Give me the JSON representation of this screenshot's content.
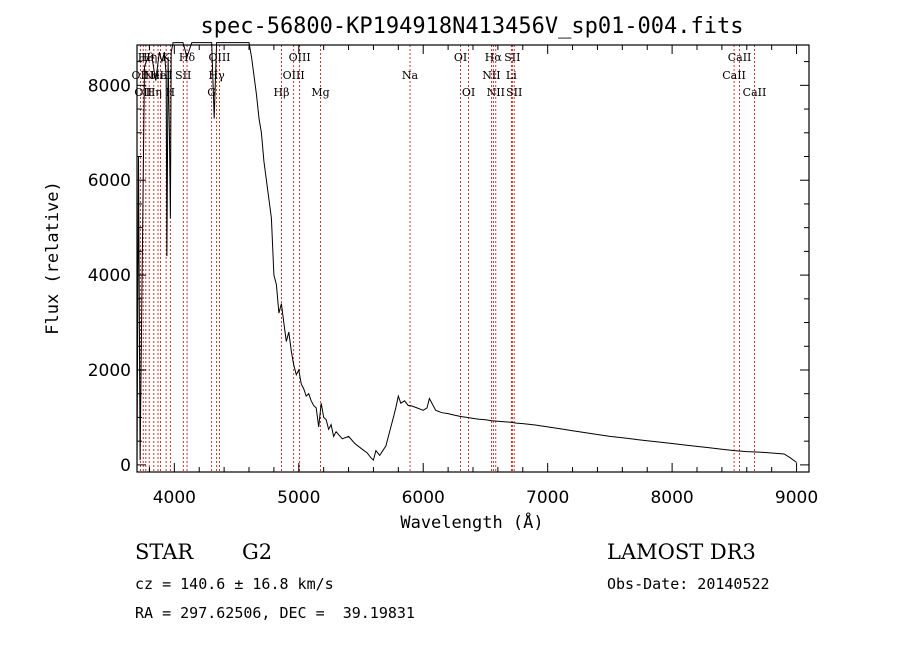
{
  "chart_data": {
    "type": "line",
    "title": "spec-56800-KP194918N413456V_sp01-004.fits",
    "xlabel": "Wavelength (Å)",
    "ylabel": "Flux (relative)",
    "xlim": [
      3700,
      9100
    ],
    "ylim": [
      -150,
      8850
    ],
    "xticks": [
      4000,
      5000,
      6000,
      7000,
      8000,
      9000
    ],
    "xtick_labels": [
      "4000",
      "5000",
      "6000",
      "7000",
      "8000",
      "9000"
    ],
    "yticks": [
      0,
      2000,
      4000,
      6000,
      8000
    ],
    "ytick_labels": [
      "0",
      "2000",
      "4000",
      "6000",
      "8000"
    ],
    "series": [
      {
        "name": "flux",
        "x": [
          3700,
          3712,
          3725,
          3740,
          3760,
          3790,
          3820,
          3850,
          3880,
          3900,
          3920,
          3935,
          3940,
          3950,
          3960,
          3968,
          3975,
          3990,
          4010,
          4040,
          4070,
          4102,
          4140,
          4200,
          4260,
          4300,
          4320,
          4340,
          4360,
          4400,
          4450,
          4500,
          4550,
          4600,
          4620,
          4640,
          4660,
          4680,
          4700,
          4720,
          4740,
          4760,
          4780,
          4800,
          4820,
          4840,
          4860,
          4880,
          4900,
          4920,
          4940,
          4960,
          4980,
          5000,
          5020,
          5040,
          5060,
          5080,
          5100,
          5120,
          5140,
          5160,
          5180,
          5200,
          5220,
          5240,
          5260,
          5280,
          5300,
          5350,
          5400,
          5450,
          5500,
          5550,
          5580,
          5600,
          5620,
          5650,
          5700,
          5730,
          5760,
          5780,
          5800,
          5820,
          5850,
          5880,
          5900,
          5950,
          6000,
          6030,
          6050,
          6100,
          6150,
          6200,
          6250,
          6300,
          6350,
          6400,
          6450,
          6500,
          6550,
          6600,
          6650,
          6700,
          6750,
          6800,
          6900,
          7000,
          7100,
          7200,
          7300,
          7400,
          7500,
          7600,
          7700,
          7800,
          7900,
          8000,
          8100,
          8200,
          8300,
          8400,
          8500,
          8600,
          8700,
          8800,
          8900,
          8950,
          9000
        ],
        "values": [
          0,
          6500,
          100,
          3800,
          8400,
          8600,
          8600,
          8100,
          8700,
          8500,
          8700,
          8200,
          4400,
          8600,
          7000,
          5200,
          8700,
          8900,
          8900,
          8900,
          8900,
          8600,
          8900,
          8900,
          8900,
          8900,
          7300,
          8900,
          8900,
          8900,
          8900,
          8900,
          8900,
          8900,
          8600,
          8200,
          7800,
          7300,
          7000,
          6400,
          6000,
          5600,
          5200,
          4000,
          3800,
          3200,
          3400,
          3000,
          2600,
          2800,
          2400,
          2100,
          1900,
          2000,
          1700,
          1600,
          1450,
          1500,
          1350,
          1250,
          1200,
          800,
          1300,
          1000,
          950,
          750,
          850,
          600,
          700,
          550,
          600,
          450,
          350,
          250,
          150,
          100,
          300,
          200,
          400,
          700,
          1000,
          1200,
          1450,
          1300,
          1350,
          1250,
          1250,
          1200,
          1150,
          1200,
          1400,
          1150,
          1100,
          1080,
          1050,
          1020,
          1000,
          980,
          960,
          950,
          930,
          920,
          910,
          900,
          880,
          870,
          840,
          800,
          760,
          720,
          680,
          640,
          600,
          570,
          540,
          510,
          480,
          450,
          420,
          390,
          360,
          330,
          300,
          280,
          270,
          250,
          230,
          150,
          50
        ]
      }
    ],
    "spectral_lines": [
      {
        "wl": 3727,
        "label": "OII",
        "row": 1
      },
      {
        "wl": 3750,
        "label": "OII",
        "row": 2
      },
      {
        "wl": 3771,
        "label": "Hθ",
        "row": 0
      },
      {
        "wl": 3798,
        "label": "Hη",
        "row": 0
      },
      {
        "wl": 3835,
        "label": "Hη",
        "row": 2
      },
      {
        "wl": 3869,
        "label": "NeIII",
        "row": 1
      },
      {
        "wl": 3889,
        "label": "HeI",
        "row": 1
      },
      {
        "wl": 3934,
        "label": "K",
        "row": 0
      },
      {
        "wl": 3968,
        "label": "H",
        "row": 2
      },
      {
        "wl": 4072,
        "label": "SII",
        "row": 1
      },
      {
        "wl": 4102,
        "label": "Hδ",
        "row": 0
      },
      {
        "wl": 4300,
        "label": "G",
        "row": 2
      },
      {
        "wl": 4340,
        "label": "Hγ",
        "row": 1
      },
      {
        "wl": 4363,
        "label": "OIII",
        "row": 0
      },
      {
        "wl": 4861,
        "label": "Hβ",
        "row": 2
      },
      {
        "wl": 4959,
        "label": "OIII",
        "row": 1
      },
      {
        "wl": 5007,
        "label": "OIII",
        "row": 0
      },
      {
        "wl": 5175,
        "label": "Mg",
        "row": 2
      },
      {
        "wl": 5894,
        "label": "Na",
        "row": 1
      },
      {
        "wl": 6300,
        "label": "OI",
        "row": 0
      },
      {
        "wl": 6364,
        "label": "OI",
        "row": 2
      },
      {
        "wl": 6548,
        "label": "NII",
        "row": 1
      },
      {
        "wl": 6563,
        "label": "Hα",
        "row": 0
      },
      {
        "wl": 6583,
        "label": "NII",
        "row": 2
      },
      {
        "wl": 6708,
        "label": "Li",
        "row": 1
      },
      {
        "wl": 6716,
        "label": "SII",
        "row": 0
      },
      {
        "wl": 6731,
        "label": "SII",
        "row": 2
      },
      {
        "wl": 8498,
        "label": "CaII",
        "row": 1
      },
      {
        "wl": 8542,
        "label": "CaII",
        "row": 0
      },
      {
        "wl": 8662,
        "label": "CaII",
        "row": 2
      }
    ],
    "line_color": "#c00000",
    "data_color": "#000000"
  },
  "info": {
    "object_class": "STAR",
    "subclass": "G2",
    "survey": "LAMOST DR3",
    "cz": "cz = 140.6 ± 16.8 km/s",
    "obs_date": "Obs-Date: 20140522",
    "coords": "RA = 297.62506, DEC =  39.19831"
  }
}
